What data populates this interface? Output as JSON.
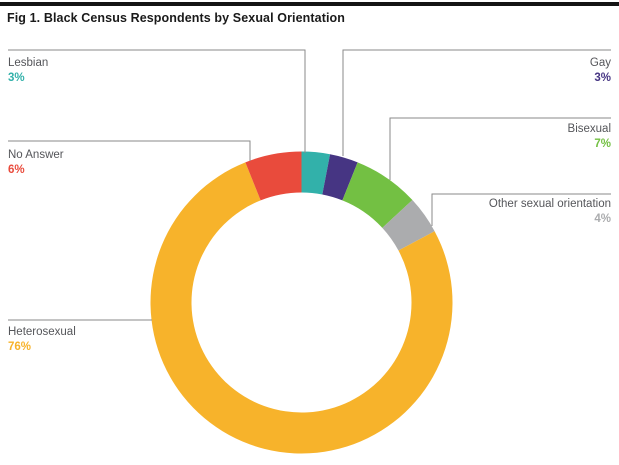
{
  "figure": {
    "title": "Fig 1. Black Census Respondents by Sexual Orientation"
  },
  "chart_data": {
    "type": "pie",
    "subtype": "donut",
    "title": "Fig 1. Black Census Respondents by Sexual Orientation",
    "unit": "percent",
    "start_angle_deg": 0,
    "direction": "clockwise",
    "legend_position": "callout-labels",
    "grid": false,
    "categories": [
      "Lesbian",
      "Gay",
      "Bisexual",
      "Other sexual orientation",
      "Heterosexual",
      "No Answer"
    ],
    "values": [
      3,
      3,
      7,
      4,
      76,
      6
    ],
    "segments": [
      {
        "label": "Lesbian",
        "value": 3,
        "display_value": "3%",
        "color": "#32B1AA",
        "label_side": "left"
      },
      {
        "label": "Gay",
        "value": 3,
        "display_value": "3%",
        "color": "#463583",
        "label_side": "right"
      },
      {
        "label": "Bisexual",
        "value": 7,
        "display_value": "7%",
        "color": "#73C043",
        "label_side": "right"
      },
      {
        "label": "Other sexual orientation",
        "value": 4,
        "display_value": "4%",
        "color": "#ABACAE",
        "label_side": "right"
      },
      {
        "label": "Heterosexual",
        "value": 76,
        "display_value": "76%",
        "color": "#F7B32B",
        "label_side": "left"
      },
      {
        "label": "No Answer",
        "value": 6,
        "display_value": "6%",
        "color": "#E94B3C",
        "label_side": "left"
      }
    ],
    "colors": {
      "leader_line": "#8A8A8A",
      "label_text": "#55565A",
      "title_text": "#1A1A1A",
      "top_rule": "#141414",
      "background": "#FFFFFF"
    }
  }
}
